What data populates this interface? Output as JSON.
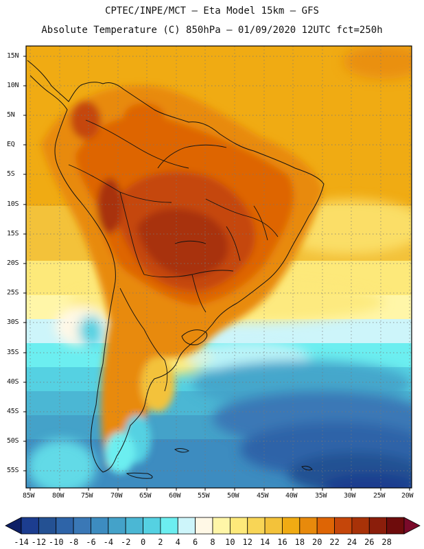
{
  "title": {
    "line1": "CPTEC/INPE/MCT –  Eta Model 15km – GFS",
    "line2": "Absolute Temperature (C) 850hPa – 01/09/2020 12UTC fct=250h"
  },
  "map": {
    "latitude_labels": [
      "15N",
      "10N",
      "5N",
      "EQ",
      "5S",
      "10S",
      "15S",
      "20S",
      "25S",
      "30S",
      "35S",
      "40S",
      "45S",
      "50S",
      "55S"
    ],
    "longitude_labels": [
      "85W",
      "80W",
      "75W",
      "70W",
      "65W",
      "60W",
      "55W",
      "50W",
      "45W",
      "40W",
      "35W",
      "30W",
      "25W",
      "20W"
    ]
  },
  "colorbar": {
    "levels": [
      "-14",
      "-12",
      "-10",
      "-8",
      "-6",
      "-4",
      "-2",
      "0",
      "2",
      "4",
      "6",
      "8",
      "10",
      "12",
      "14",
      "16",
      "18",
      "20",
      "22",
      "24",
      "26",
      "28"
    ],
    "colors": [
      "#1c3d8f",
      "#245193",
      "#2e64a8",
      "#3a78b6",
      "#3d8cc0",
      "#44a2c9",
      "#4bb7d4",
      "#55d1e2",
      "#6ceef0",
      "#cdf5fa",
      "#fff8e6",
      "#fff6a8",
      "#fde97a",
      "#f8d556",
      "#f3c23a",
      "#f0ab13",
      "#e88a0c",
      "#de6505",
      "#c5460a",
      "#a83208",
      "#8b1e0b",
      "#6e0c0c"
    ],
    "low_end_color": "#0d1f66",
    "high_end_color": "#7a0a2a"
  }
}
